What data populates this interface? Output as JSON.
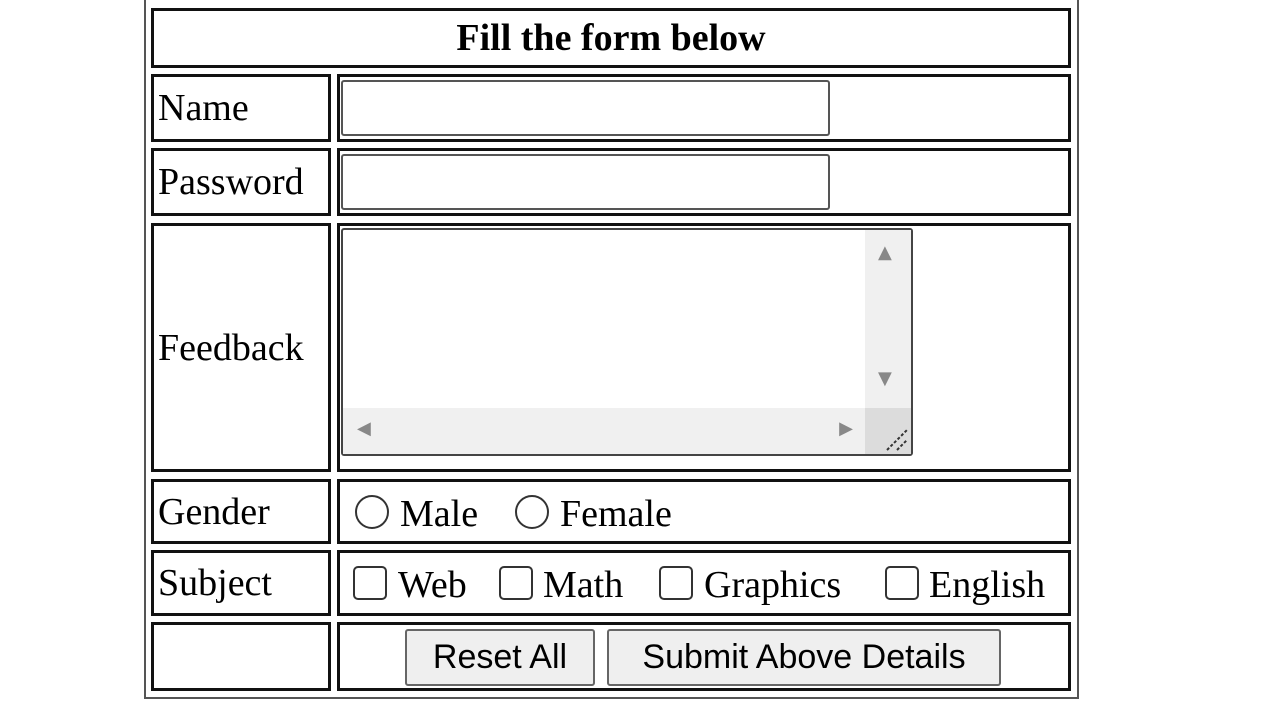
{
  "form": {
    "title": "Fill the form below",
    "name_label": "Name",
    "name_value": "",
    "password_label": "Password",
    "password_value": "",
    "feedback_label": "Feedback",
    "feedback_value": "",
    "gender_label": "Gender",
    "gender_options": [
      "Male",
      "Female"
    ],
    "subject_label": "Subject",
    "subject_options": [
      "Web",
      "Math",
      "Graphics",
      "English"
    ],
    "reset_label": "Reset All",
    "submit_label": "Submit Above Details"
  }
}
